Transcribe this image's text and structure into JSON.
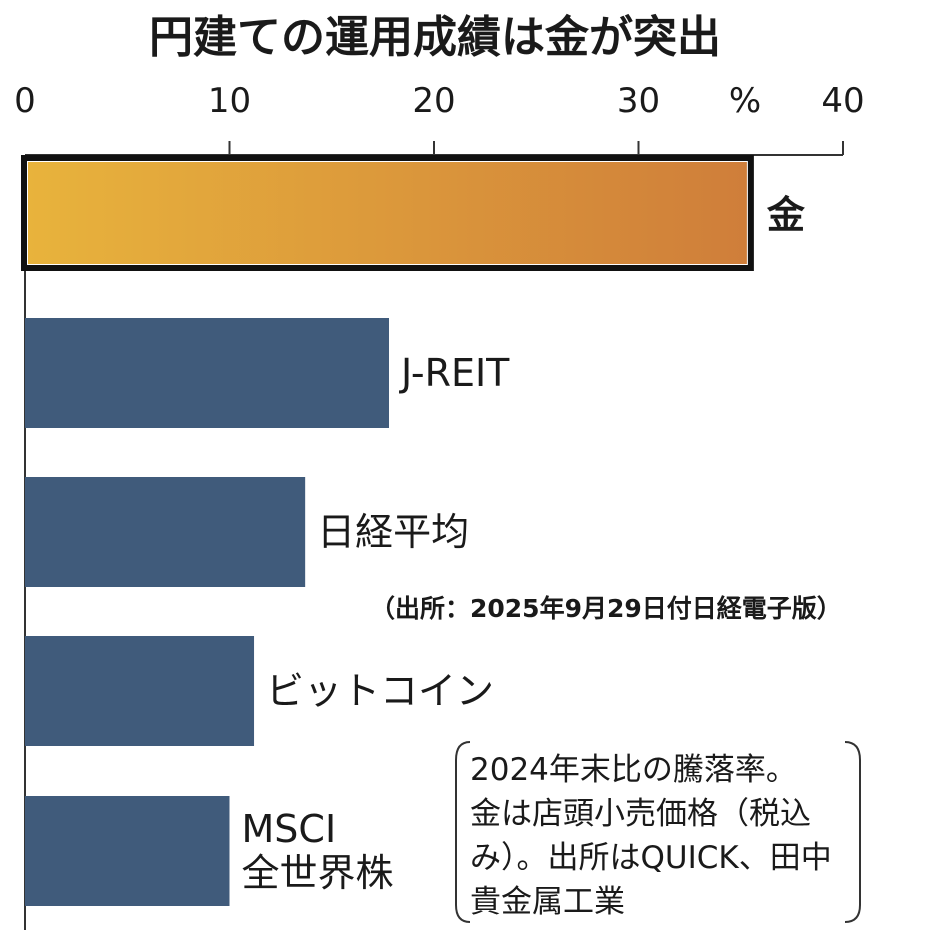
{
  "chart_data": {
    "type": "bar",
    "orientation": "horizontal",
    "title": "円建ての運用成績は金が突出",
    "unit": "%",
    "xlim": [
      0,
      40
    ],
    "ticks": [
      0,
      10,
      20,
      30,
      40
    ],
    "categories": [
      "金",
      "J-REIT",
      "日経平均",
      "ビットコイン",
      "MSCI\n全世界株"
    ],
    "values": [
      35.3,
      17.8,
      13.7,
      11.2,
      10.0
    ],
    "highlight": "金",
    "colors": {
      "bar": "#405b7b",
      "highlight_start": "#e8b33c",
      "highlight_end": "#cf7e3a",
      "axis": "#333333"
    },
    "source": "（出所：2025年9月29日付日経電子版）",
    "note": [
      "2024年末比の騰落率。",
      "金は店頭小売価格（税込",
      "み）。出所はQUICK、田中",
      "貴金属工業"
    ]
  }
}
